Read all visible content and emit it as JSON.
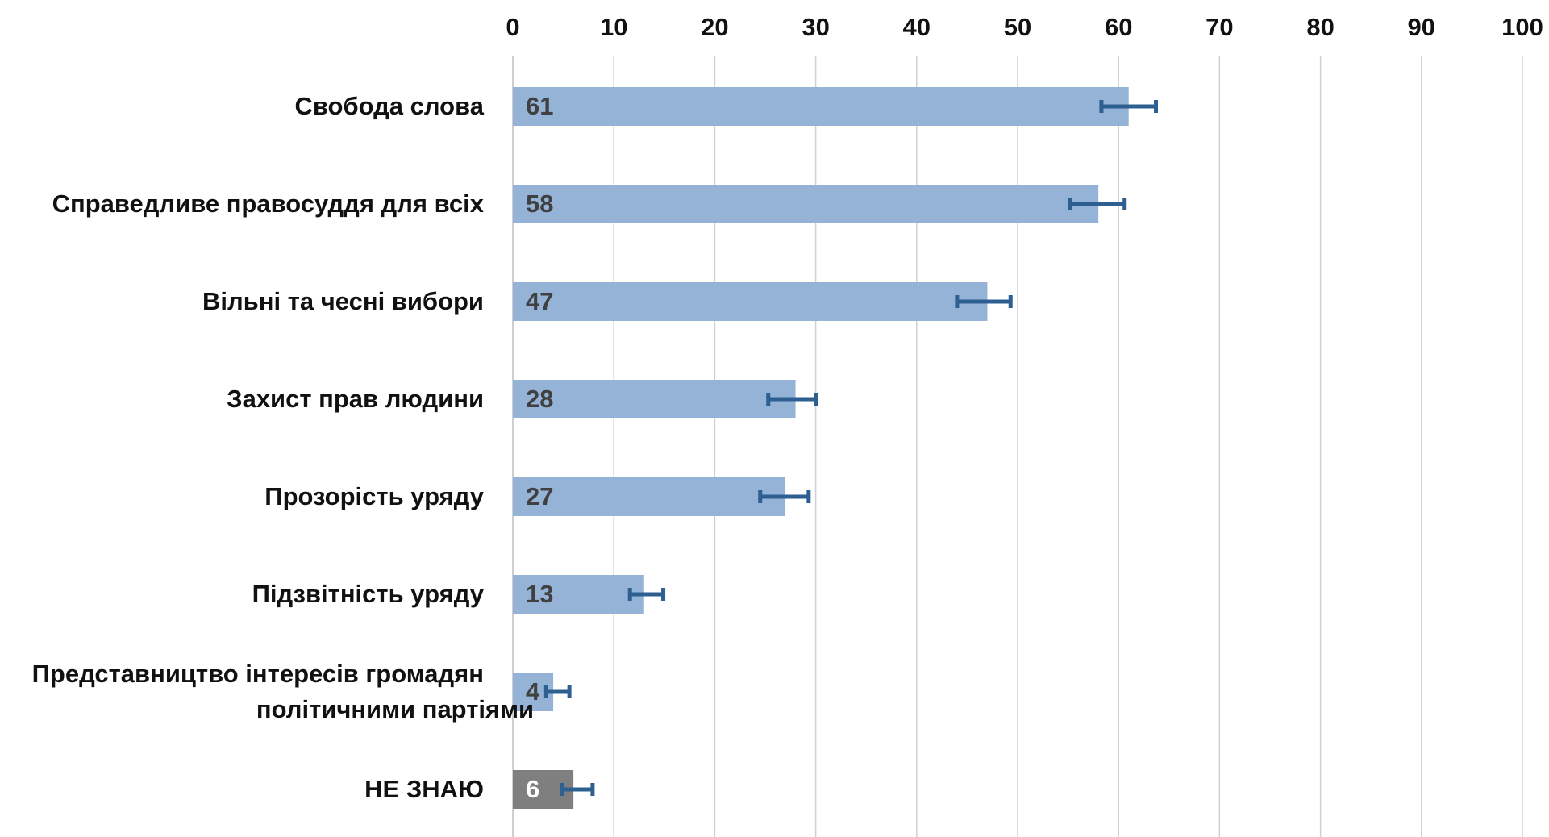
{
  "chart_data": {
    "type": "bar",
    "orientation": "horizontal",
    "categories": [
      [
        "Свобода слова"
      ],
      [
        "Справедливе правосуддя для всіх"
      ],
      [
        "Вільні та чесні вибори"
      ],
      [
        "Захист прав людини"
      ],
      [
        "Прозорість уряду"
      ],
      [
        "Підзвітність  уряду"
      ],
      [
        "Представництво інтересів громадян",
        "політичними партіями"
      ],
      [
        "НЕ ЗНАЮ"
      ]
    ],
    "values": [
      61,
      58,
      47,
      28,
      27,
      13,
      4,
      6
    ],
    "value_labels": [
      "61",
      "58",
      "47",
      "28",
      "27",
      "13",
      "4",
      "6"
    ],
    "error_bars": [
      [
        58.3,
        63.7
      ],
      [
        55.2,
        60.6
      ],
      [
        44.0,
        49.3
      ],
      [
        25.3,
        30.0
      ],
      [
        24.5,
        29.3
      ],
      [
        11.6,
        14.9
      ],
      [
        3.3,
        5.6
      ],
      [
        4.9,
        7.9
      ]
    ],
    "bar_colors": [
      "#95b3d7",
      "#95b3d7",
      "#95b3d7",
      "#95b3d7",
      "#95b3d7",
      "#95b3d7",
      "#95b3d7",
      "#7f7f7f"
    ],
    "label_colors": [
      "#404040",
      "#404040",
      "#404040",
      "#404040",
      "#404040",
      "#404040",
      "#404040",
      "#ffffff"
    ],
    "error_bar_color": "#2e5f91",
    "gridline_color": "#d0d0d0",
    "xlim": [
      0,
      100
    ],
    "xticks": [
      0,
      10,
      20,
      30,
      40,
      50,
      60,
      70,
      80,
      90,
      100
    ],
    "x_axis_position": "top",
    "grid": true,
    "legend": "none"
  }
}
